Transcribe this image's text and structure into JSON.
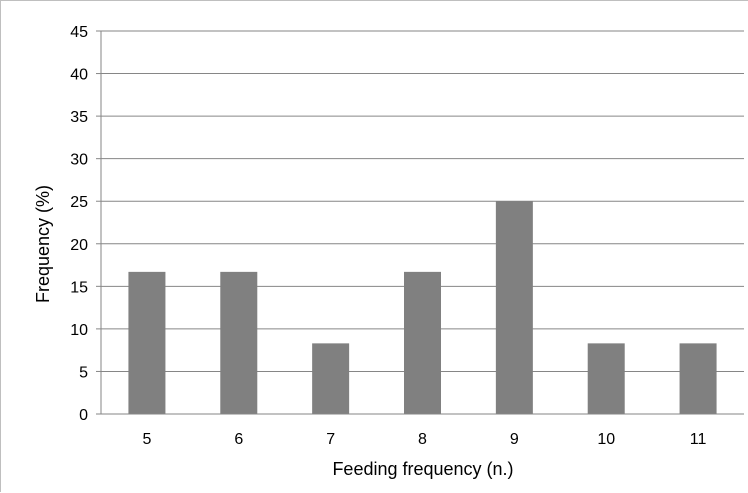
{
  "chart_data": {
    "type": "bar",
    "title": "",
    "xlabel": "Feeding frequency (n.)",
    "ylabel": "Frequency (%)",
    "categories": [
      "5",
      "6",
      "7",
      "8",
      "9",
      "10",
      "11"
    ],
    "values": [
      16.7,
      16.7,
      8.3,
      16.7,
      25.0,
      8.3,
      8.3
    ],
    "ylim": [
      0,
      45
    ],
    "yticks": [
      "0",
      "5",
      "10",
      "15",
      "20",
      "25",
      "30",
      "35",
      "40",
      "45"
    ],
    "grid": true,
    "legend": "none",
    "bar_color": "#808080",
    "grid_color": "#868686",
    "axis_color": "#868686"
  }
}
